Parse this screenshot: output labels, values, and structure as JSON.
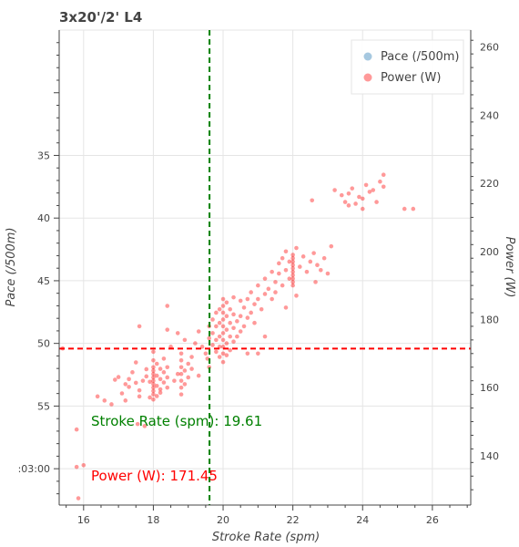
{
  "chart_data": {
    "type": "scatter",
    "title": "3x20'/2' L4",
    "xlabel": "Stroke Rate (spm)",
    "ylabel_left": "Pace (/500m)",
    "ylabel_right": "Power (W)",
    "xlim": [
      15.3,
      27.1
    ],
    "y_left_lim": [
      62.9,
      25.0
    ],
    "y_right_lim": [
      125.5,
      265.0
    ],
    "x_ticks": [
      "16",
      "18",
      "20",
      "22",
      "24",
      "26"
    ],
    "x_tick_values": [
      16,
      18,
      20,
      22,
      24,
      26
    ],
    "y_left_ticks": [
      "35",
      "40",
      "45",
      "50",
      "55",
      ":03:00"
    ],
    "y_left_tick_values": [
      35,
      40,
      45,
      50,
      55,
      60
    ],
    "y_right_ticks": [
      "140",
      "160",
      "180",
      "200",
      "220",
      "240",
      "260"
    ],
    "y_right_tick_values": [
      140,
      160,
      180,
      200,
      220,
      240,
      260
    ],
    "grid": true,
    "legend_position": "top-right",
    "legend": [
      {
        "label": "Pace (/500m)",
        "color": "#a6c8e0"
      },
      {
        "label": "Power (W)",
        "color": "#ff9999"
      }
    ],
    "reference_lines": {
      "stroke_rate": {
        "value": 19.61,
        "color": "#008000"
      },
      "power": {
        "value": 171.45,
        "color": "#ff0000"
      }
    },
    "annotations": {
      "stroke_rate_label": "Stroke Rate (spm):  19.61",
      "power_label": "Power (W): 171.45"
    },
    "series": [
      {
        "name": "Power (W)",
        "color": "#ff0000",
        "points": [
          [
            15.4,
            171.5
          ],
          [
            15.8,
            136.7
          ],
          [
            15.85,
            127.5
          ],
          [
            15.8,
            147.7
          ],
          [
            16.0,
            137.2
          ],
          [
            16.4,
            157.4
          ],
          [
            16.6,
            156.2
          ],
          [
            16.8,
            155.1
          ],
          [
            16.9,
            162.3
          ],
          [
            17.0,
            163.1
          ],
          [
            17.1,
            158.3
          ],
          [
            17.2,
            161.0
          ],
          [
            17.2,
            156.2
          ],
          [
            17.3,
            160.2
          ],
          [
            17.4,
            164.5
          ],
          [
            17.5,
            167.4
          ],
          [
            17.5,
            161.4
          ],
          [
            17.6,
            159.2
          ],
          [
            17.6,
            157.4
          ],
          [
            17.7,
            162.0
          ],
          [
            17.8,
            165.4
          ],
          [
            17.8,
            163.3
          ],
          [
            17.9,
            161.7
          ],
          [
            17.55,
            149.3
          ],
          [
            17.75,
            148.7
          ],
          [
            17.3,
            162.5
          ],
          [
            17.9,
            157.1
          ],
          [
            18.0,
            158.0
          ],
          [
            18.0,
            160.0
          ],
          [
            18.0,
            162.0
          ],
          [
            18.0,
            164.0
          ],
          [
            18.0,
            166.0
          ],
          [
            18.0,
            156.5
          ],
          [
            18.0,
            168.0
          ],
          [
            18.0,
            170.5
          ],
          [
            18.0,
            159.0
          ],
          [
            18.0,
            161.0
          ],
          [
            18.0,
            163.0
          ],
          [
            18.0,
            165.0
          ],
          [
            18.1,
            157.5
          ],
          [
            18.1,
            160.5
          ],
          [
            18.1,
            163.5
          ],
          [
            18.1,
            167.0
          ],
          [
            18.2,
            159.5
          ],
          [
            18.2,
            162.5
          ],
          [
            18.2,
            165.5
          ],
          [
            18.2,
            158.5
          ],
          [
            18.3,
            161.5
          ],
          [
            18.3,
            164.5
          ],
          [
            18.3,
            168.5
          ],
          [
            18.4,
            160.0
          ],
          [
            18.4,
            163.0
          ],
          [
            18.4,
            166.0
          ],
          [
            18.6,
            162.0
          ],
          [
            18.7,
            164.0
          ],
          [
            18.8,
            158.0
          ],
          [
            18.8,
            160.0
          ],
          [
            18.8,
            162.0
          ],
          [
            18.8,
            164.0
          ],
          [
            18.8,
            166.0
          ],
          [
            18.8,
            168.0
          ],
          [
            18.8,
            170.0
          ],
          [
            18.9,
            161.0
          ],
          [
            18.9,
            165.0
          ],
          [
            19.0,
            163.0
          ],
          [
            19.0,
            167.0
          ],
          [
            19.1,
            169.0
          ],
          [
            19.1,
            165.5
          ],
          [
            18.5,
            172.0
          ],
          [
            18.7,
            176.0
          ],
          [
            18.4,
            177.0
          ],
          [
            18.4,
            184.0
          ],
          [
            17.6,
            178.0
          ],
          [
            18.9,
            174.0
          ],
          [
            19.2,
            173.0
          ],
          [
            19.3,
            176.5
          ],
          [
            19.4,
            172.0
          ],
          [
            19.5,
            170.0
          ],
          [
            19.55,
            168.5
          ],
          [
            19.6,
            174.5
          ],
          [
            19.6,
            178.0
          ],
          [
            19.7,
            180.0
          ],
          [
            19.7,
            176.0
          ],
          [
            19.7,
            172.5
          ],
          [
            19.8,
            170.5
          ],
          [
            19.8,
            174.0
          ],
          [
            19.8,
            178.0
          ],
          [
            19.8,
            182.0
          ],
          [
            19.9,
            169.0
          ],
          [
            19.9,
            172.0
          ],
          [
            19.9,
            175.0
          ],
          [
            19.9,
            179.0
          ],
          [
            19.9,
            183.0
          ],
          [
            20.0,
            167.5
          ],
          [
            20.0,
            170.0
          ],
          [
            20.0,
            172.0
          ],
          [
            20.0,
            174.0
          ],
          [
            20.0,
            176.0
          ],
          [
            20.0,
            178.0
          ],
          [
            20.0,
            180.0
          ],
          [
            20.0,
            182.0
          ],
          [
            20.0,
            184.0
          ],
          [
            20.0,
            186.0
          ],
          [
            20.1,
            169.5
          ],
          [
            20.1,
            173.0
          ],
          [
            20.1,
            177.0
          ],
          [
            20.1,
            181.0
          ],
          [
            20.1,
            185.0
          ],
          [
            20.2,
            171.0
          ],
          [
            20.2,
            175.0
          ],
          [
            20.2,
            179.0
          ],
          [
            20.2,
            183.0
          ],
          [
            20.3,
            173.5
          ],
          [
            20.3,
            177.5
          ],
          [
            20.3,
            181.5
          ],
          [
            20.3,
            186.5
          ],
          [
            20.4,
            175.0
          ],
          [
            20.4,
            179.5
          ],
          [
            20.5,
            176.5
          ],
          [
            20.5,
            181.0
          ],
          [
            20.5,
            185.5
          ],
          [
            20.6,
            178.0
          ],
          [
            20.6,
            183.5
          ],
          [
            20.7,
            180.5
          ],
          [
            20.7,
            186.0
          ],
          [
            20.8,
            182.0
          ],
          [
            20.8,
            188.0
          ],
          [
            20.9,
            179.0
          ],
          [
            20.9,
            184.5
          ],
          [
            21.0,
            186.0
          ],
          [
            21.0,
            190.0
          ],
          [
            21.1,
            183.0
          ],
          [
            21.2,
            187.5
          ],
          [
            21.2,
            192.0
          ],
          [
            21.3,
            189.0
          ],
          [
            21.4,
            186.0
          ],
          [
            21.4,
            194.0
          ],
          [
            21.5,
            191.0
          ],
          [
            21.5,
            188.0
          ],
          [
            21.6,
            193.5
          ],
          [
            21.6,
            196.5
          ],
          [
            21.7,
            190.0
          ],
          [
            21.7,
            198.0
          ],
          [
            21.8,
            194.5
          ],
          [
            21.8,
            200.0
          ],
          [
            21.9,
            192.0
          ],
          [
            21.9,
            197.0
          ],
          [
            22.0,
            190.0
          ],
          [
            22.0,
            191.0
          ],
          [
            22.0,
            192.0
          ],
          [
            22.0,
            193.0
          ],
          [
            22.0,
            194.0
          ],
          [
            22.0,
            195.0
          ],
          [
            22.0,
            196.0
          ],
          [
            22.0,
            197.0
          ],
          [
            22.0,
            198.0
          ],
          [
            22.0,
            199.0
          ],
          [
            22.1,
            201.0
          ],
          [
            22.2,
            195.5
          ],
          [
            22.3,
            198.5
          ],
          [
            22.4,
            194.0
          ],
          [
            22.5,
            197.0
          ],
          [
            22.6,
            199.5
          ],
          [
            22.7,
            196.0
          ],
          [
            22.8,
            194.5
          ],
          [
            22.9,
            198.0
          ],
          [
            23.0,
            193.5
          ],
          [
            23.1,
            201.5
          ],
          [
            22.65,
            191.0
          ],
          [
            22.1,
            187.0
          ],
          [
            21.8,
            183.5
          ],
          [
            21.2,
            175.0
          ],
          [
            21.0,
            170.0
          ],
          [
            20.7,
            170.0
          ],
          [
            19.6,
            166.0
          ],
          [
            19.3,
            163.5
          ],
          [
            22.55,
            215.0
          ],
          [
            23.2,
            218.0
          ],
          [
            23.4,
            216.5
          ],
          [
            23.5,
            214.5
          ],
          [
            23.6,
            217.0
          ],
          [
            23.7,
            218.5
          ],
          [
            23.8,
            214.0
          ],
          [
            23.9,
            216.0
          ],
          [
            24.0,
            215.5
          ],
          [
            24.1,
            219.5
          ],
          [
            24.2,
            217.5
          ],
          [
            24.3,
            218.0
          ],
          [
            24.4,
            214.5
          ],
          [
            24.5,
            220.5
          ],
          [
            24.6,
            222.5
          ],
          [
            24.0,
            212.5
          ],
          [
            23.6,
            213.5
          ],
          [
            25.2,
            212.5
          ],
          [
            25.45,
            212.5
          ],
          [
            24.6,
            219.0
          ]
        ]
      }
    ]
  }
}
